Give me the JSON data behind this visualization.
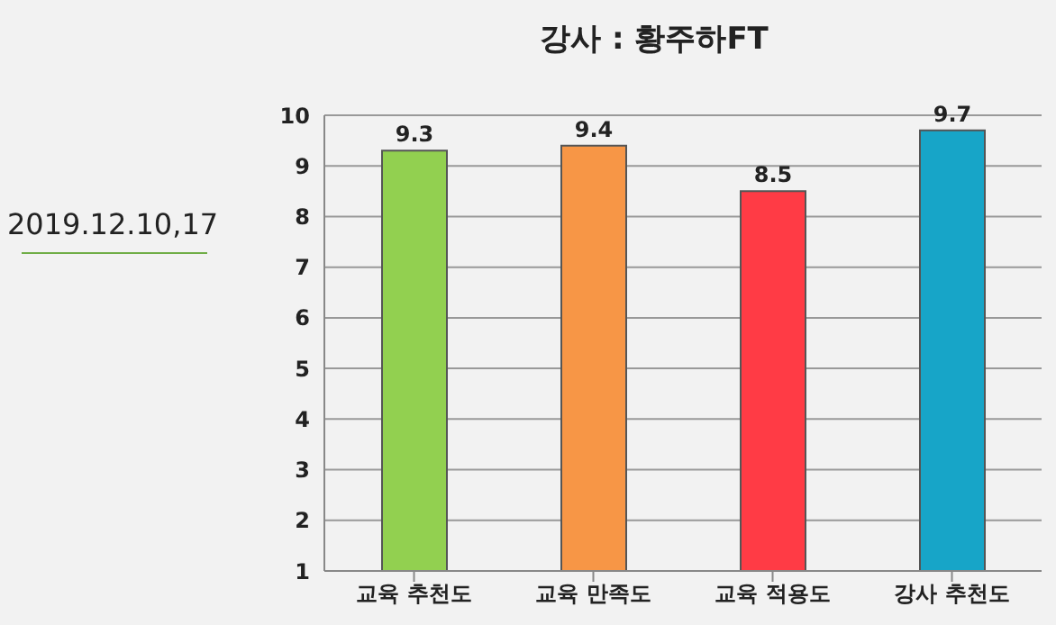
{
  "chart_data": {
    "type": "bar",
    "title": "강사 : 황주하FT",
    "categories": [
      "교육 추천도",
      "교육 만족도",
      "교육 적용도",
      "강사 추천도"
    ],
    "values": [
      9.3,
      9.4,
      8.5,
      9.7
    ],
    "colors": [
      "#92d050",
      "#f79646",
      "#ff3b45",
      "#17a5c8"
    ],
    "ylim": [
      1,
      10
    ],
    "yticks": [
      1,
      2,
      3,
      4,
      5,
      6,
      7,
      8,
      9,
      10
    ],
    "grid": "y",
    "data_labels": true,
    "annotations": [
      "2019.12.10,17"
    ]
  }
}
